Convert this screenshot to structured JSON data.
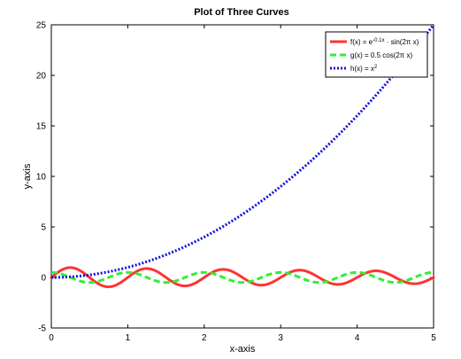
{
  "chart_data": {
    "type": "line",
    "title": "Plot of Three Curves",
    "xlabel": "x-axis",
    "ylabel": "y-axis",
    "xlim": [
      0,
      5
    ],
    "ylim": [
      -5,
      25
    ],
    "xticks": [
      0,
      1,
      2,
      3,
      4,
      5
    ],
    "yticks": [
      -5,
      0,
      5,
      10,
      15,
      20,
      25
    ],
    "grid": false,
    "legend_position": "top-right",
    "series": [
      {
        "name": "f(x) = e^{-0.1x} · sin(2π x)",
        "legend_parts": {
          "pre": "f(x) = e",
          "sup": "-0.1x",
          "post": " · sin(2π x)"
        },
        "function": "exp(-0.1x)*sin(2*pi*x)",
        "color": "#ff3333",
        "style": "solid",
        "x": [
          0,
          0.25,
          0.5,
          0.75,
          1,
          1.25,
          1.5,
          1.75,
          2,
          2.25,
          2.5,
          2.75,
          3,
          3.25,
          3.5,
          3.75,
          4,
          4.25,
          4.5,
          4.75,
          5
        ],
        "y": [
          0,
          0.98,
          0,
          -0.93,
          0,
          0.88,
          0,
          -0.84,
          0,
          0.8,
          0,
          -0.76,
          0,
          0.72,
          0,
          -0.69,
          0,
          0.65,
          0,
          -0.62,
          0
        ]
      },
      {
        "name": "g(x) = 0.5 cos(2π x)",
        "legend_parts": {
          "pre": "g(x) = 0.5 cos(2π x)",
          "sup": "",
          "post": ""
        },
        "function": "0.5*cos(2*pi*x)",
        "color": "#33ee33",
        "style": "dashed",
        "x": [
          0,
          0.25,
          0.5,
          0.75,
          1,
          1.25,
          1.5,
          1.75,
          2,
          2.25,
          2.5,
          2.75,
          3,
          3.25,
          3.5,
          3.75,
          4,
          4.25,
          4.5,
          4.75,
          5
        ],
        "y": [
          0.5,
          0,
          -0.5,
          0,
          0.5,
          0,
          -0.5,
          0,
          0.5,
          0,
          -0.5,
          0,
          0.5,
          0,
          -0.5,
          0,
          0.5,
          0,
          -0.5,
          0,
          0.5
        ]
      },
      {
        "name": "h(x) = x²",
        "legend_parts": {
          "pre": "h(x) = x",
          "sup": "2",
          "post": ""
        },
        "function": "x^2",
        "color": "#1111dd",
        "style": "dotted",
        "x": [
          0,
          0.5,
          1,
          1.5,
          2,
          2.5,
          3,
          3.5,
          4,
          4.5,
          5
        ],
        "y": [
          0,
          0.25,
          1,
          2.25,
          4,
          6.25,
          9,
          12.25,
          16,
          20.25,
          25
        ]
      }
    ]
  }
}
